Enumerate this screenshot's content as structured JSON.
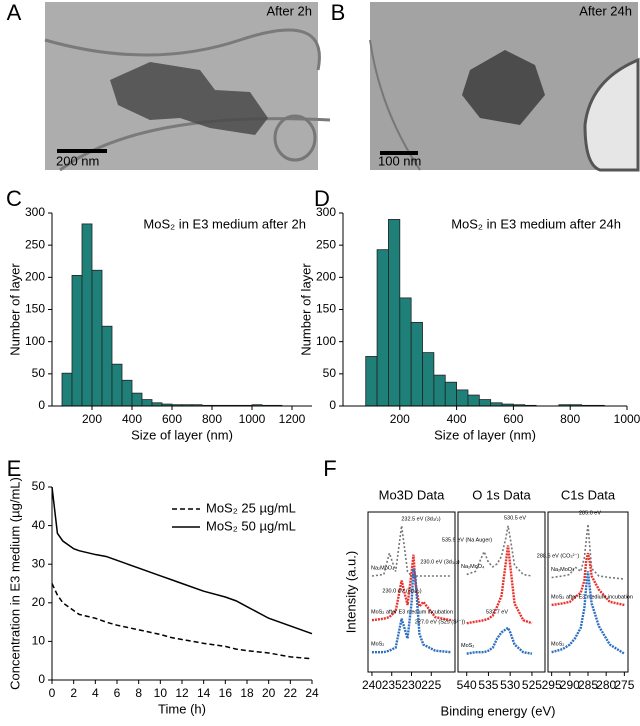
{
  "panel_labels": [
    "A",
    "B",
    "C",
    "D",
    "E",
    "F"
  ],
  "images": [
    {
      "caption": "After 2h",
      "scale_bar": "200 nm"
    },
    {
      "caption": "After 24h",
      "scale_bar": "100 nm"
    }
  ],
  "chart_data": [
    {
      "type": "histogram",
      "title": "MoS₂ in E3 medium after 2h",
      "xlabel": "Size of layer (nm)",
      "ylabel": "Number of layer",
      "color": "#1f8079",
      "bins": [
        50,
        100,
        150,
        200,
        250,
        300,
        350,
        400,
        450,
        500,
        550,
        600,
        650,
        700,
        750,
        800,
        850,
        900,
        950,
        1000,
        1050,
        1100,
        1150
      ],
      "counts": [
        51,
        203,
        283,
        211,
        124,
        65,
        40,
        20,
        10,
        5,
        3,
        2,
        2,
        2,
        1,
        1,
        1,
        1,
        1,
        2,
        1,
        1
      ],
      "xlim": [
        0,
        1300
      ],
      "xticks": [
        200,
        400,
        600,
        800,
        1000,
        1200
      ],
      "ylim": [
        0,
        300
      ],
      "yticks": [
        0,
        50,
        100,
        150,
        200,
        250,
        300
      ]
    },
    {
      "type": "histogram",
      "title": "MoS₂ in E3 medium after 24h",
      "xlabel": "Size of layer (nm)",
      "ylabel": "Number of layer",
      "color": "#1f8079",
      "bins": [
        80,
        120,
        160,
        200,
        240,
        280,
        320,
        360,
        400,
        440,
        480,
        520,
        560,
        600,
        640,
        680,
        720,
        760,
        800,
        840,
        880,
        920
      ],
      "counts": [
        77,
        243,
        290,
        168,
        130,
        83,
        48,
        37,
        25,
        17,
        10,
        5,
        3,
        2,
        1,
        0,
        0,
        2,
        2,
        1,
        1
      ],
      "xlim": [
        0,
        1000
      ],
      "xticks": [
        200,
        400,
        600,
        800,
        1000
      ],
      "ylim": [
        0,
        300
      ],
      "yticks": [
        0,
        50,
        100,
        150,
        200,
        250,
        300
      ]
    },
    {
      "type": "line",
      "xlabel": "Time (h)",
      "ylabel": "Concentration in E3 medium (µg/mL)",
      "legend": "upper right",
      "x": [
        0,
        0.5,
        1,
        2,
        2.5,
        4,
        5,
        6,
        8,
        10,
        11,
        12,
        14,
        16,
        17,
        18,
        20,
        22,
        24
      ],
      "series": [
        {
          "name": "MoS₂ 25 µg/mL",
          "color": "#000000",
          "dash": true,
          "values": [
            25,
            22,
            20,
            18,
            17,
            16,
            15,
            14.2,
            13,
            11.8,
            11,
            10.5,
            9.5,
            8.7,
            8,
            7.6,
            7,
            6,
            5.5
          ]
        },
        {
          "name": "MoS₂ 50 µg/mL",
          "color": "#000000",
          "dash": false,
          "values": [
            50,
            38,
            36,
            34,
            33.5,
            32.5,
            32,
            31,
            29,
            27,
            26,
            25,
            23,
            21.5,
            20.5,
            19,
            16,
            14,
            12
          ]
        }
      ],
      "xlim": [
        0,
        24
      ],
      "xticks": [
        0,
        2,
        4,
        6,
        8,
        10,
        12,
        14,
        16,
        18,
        20,
        22,
        24
      ],
      "ylim": [
        0,
        50
      ],
      "yticks": [
        0,
        10,
        20,
        30,
        40,
        50
      ]
    },
    {
      "type": "spectra",
      "xlabel": "Binding energy (eV)",
      "ylabel": "Intensity (a.u.)",
      "ylim": [
        0,
        10.5
      ],
      "panels": [
        {
          "title": "Mo3D Data",
          "xlim": [
            241,
            219
          ],
          "xticks": [
            240,
            235,
            230,
            225
          ],
          "x": [
            240,
            237,
            235.6,
            234,
            232.5,
            231,
            230,
            229.5,
            229,
            228,
            227,
            224,
            220
          ],
          "series": [
            {
              "name": "Na₂MoO₄",
              "color": "#777777",
              "values": [
                6.3,
                6.4,
                7.8,
                6.6,
                9.6,
                6.6,
                6.3,
                6.3,
                6.3,
                6.3,
                6.3,
                6.3,
                6.3
              ]
            },
            {
              "name": "MoS₂ after E3 medium incubation",
              "color": "#e8322d",
              "values": [
                3.4,
                3.5,
                3.6,
                4.0,
                6.0,
                4.4,
                6.5,
                7.7,
                5.8,
                4.3,
                4.6,
                3.6,
                3.4
              ]
            },
            {
              "name": "MoS₂",
              "color": "#2c6fbf",
              "values": [
                1.3,
                1.3,
                1.4,
                1.6,
                3.5,
                2.2,
                4.5,
                6.8,
                6.2,
                2.5,
                1.8,
                1.4,
                1.3
              ]
            }
          ],
          "annotations": [
            "232.5 eV (3d₃/₂)",
            "230.0 eV (3d₅/₂)",
            "230.0 eV (3d₃/₂)",
            "227.0 eV (S2s (S²⁻))"
          ]
        },
        {
          "title": "O 1s Data",
          "xlim": [
            542,
            522
          ],
          "xticks": [
            540,
            535,
            530,
            525
          ],
          "x": [
            540,
            538,
            536,
            535,
            534,
            533,
            532,
            531,
            530.5,
            530,
            529,
            527,
            525
          ],
          "series": [
            {
              "name": "Na₂MoO₄",
              "color": "#777777",
              "values": [
                6.4,
                6.6,
                7.9,
                7.2,
                6.9,
                7.1,
                7.6,
                8.8,
                9.6,
                8.8,
                7.0,
                6.4,
                6.3
              ]
            },
            {
              "color": "#e8322d",
              "values": [
                3.2,
                3.3,
                3.4,
                3.5,
                3.7,
                4.3,
                5.0,
                7.2,
                8.3,
                7.0,
                4.5,
                3.4,
                3.2
              ]
            },
            {
              "name": "MoS₂",
              "color": "#2c6fbf",
              "values": [
                1.2,
                1.3,
                1.3,
                1.4,
                1.6,
                2.2,
                2.6,
                2.8,
                2.9,
                2.6,
                1.8,
                1.3,
                1.2
              ]
            }
          ],
          "annotations": [
            "535.9 eV (Na Auger)",
            "530.5 eV",
            "532.7 eV"
          ]
        },
        {
          "title": "C1s Data",
          "xlim": [
            296,
            274
          ],
          "xticks": [
            295,
            290,
            285,
            280,
            275
          ],
          "x": [
            295,
            292,
            290,
            288.6,
            287,
            286,
            285.5,
            285,
            284.5,
            284,
            282,
            279,
            275
          ],
          "series": [
            {
              "name": "Na₂MoO₄",
              "color": "#777777",
              "values": [
                6.2,
                6.3,
                6.4,
                6.9,
                6.6,
                7.5,
                8.6,
                9.7,
                8.2,
                6.8,
                6.3,
                6.2,
                6.1
              ]
            },
            {
              "name": "MoS₂ after E3 medium incubation",
              "color": "#e8322d",
              "values": [
                4.4,
                4.5,
                4.6,
                4.9,
                5.2,
                6.0,
                7.3,
                7.8,
                7.2,
                6.3,
                5.4,
                4.6,
                4.4
              ]
            },
            {
              "name": "MoS₂",
              "color": "#2c6fbf",
              "values": [
                1.3,
                1.5,
                1.8,
                2.2,
                2.9,
                4.2,
                5.6,
                6.6,
                5.5,
                4.5,
                3.0,
                1.8,
                1.2
              ]
            }
          ],
          "annotations": [
            "288.6 eV (CO₃²⁻)",
            "285.0 eV"
          ]
        }
      ]
    }
  ]
}
